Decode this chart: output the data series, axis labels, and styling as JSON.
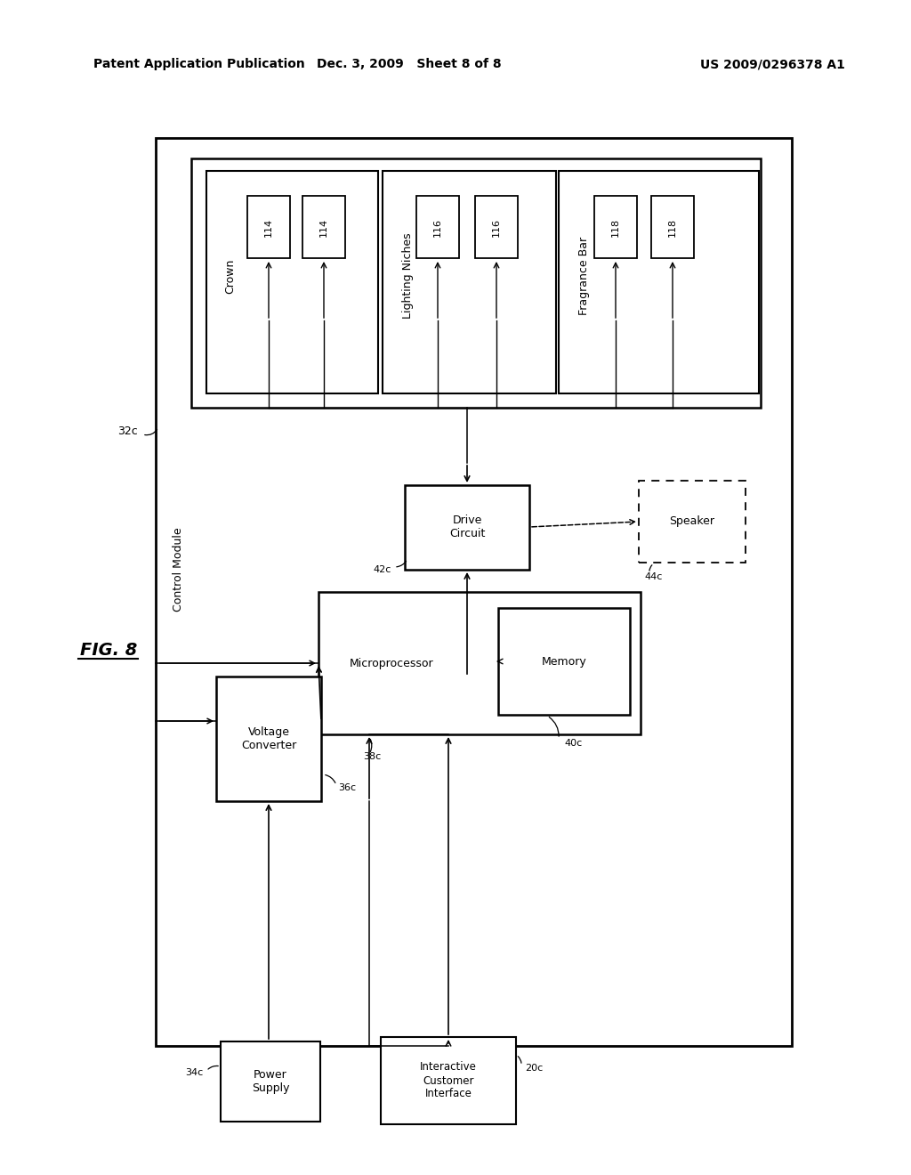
{
  "header_left": "Patent Application Publication",
  "header_center": "Dec. 3, 2009   Sheet 8 of 8",
  "header_right": "US 2009/0296378 A1",
  "fig_label": "FIG. 8",
  "bg": "#ffffff"
}
